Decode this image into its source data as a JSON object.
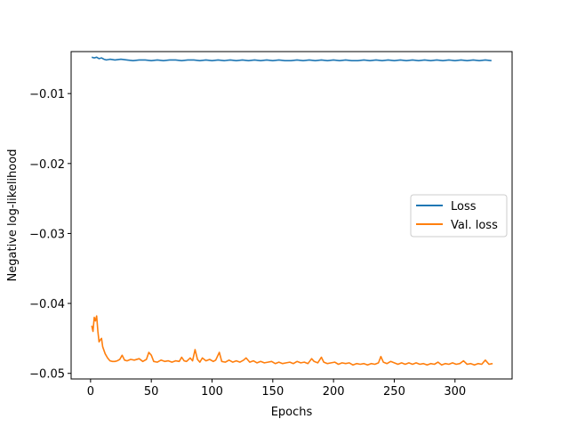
{
  "chart_data": {
    "type": "line",
    "title": "",
    "xlabel": "Epochs",
    "ylabel": "Negative log-likelihood",
    "xlim": [
      -16,
      347
    ],
    "ylim": [
      -0.0508,
      -0.004
    ],
    "xticks": [
      0,
      50,
      100,
      150,
      200,
      250,
      300
    ],
    "xtick_labels": [
      "0",
      "50",
      "100",
      "150",
      "200",
      "250",
      "300"
    ],
    "yticks": [
      -0.01,
      -0.02,
      -0.03,
      -0.04,
      -0.05
    ],
    "ytick_labels": [
      "−0.01",
      "−0.02",
      "−0.03",
      "−0.04",
      "−0.05"
    ],
    "grid": false,
    "legend": {
      "position": "center-right"
    },
    "series": [
      {
        "name": "Loss",
        "color": "#1f77b4",
        "points": [
          [
            1,
            -0.0048
          ],
          [
            3,
            -0.0049
          ],
          [
            5,
            -0.0048
          ],
          [
            7,
            -0.005
          ],
          [
            9,
            -0.0049
          ],
          [
            11,
            -0.0051
          ],
          [
            13,
            -0.0052
          ],
          [
            16,
            -0.0051
          ],
          [
            20,
            -0.0052
          ],
          [
            25,
            -0.0051
          ],
          [
            30,
            -0.0052
          ],
          [
            35,
            -0.0053
          ],
          [
            40,
            -0.0052
          ],
          [
            45,
            -0.0052
          ],
          [
            50,
            -0.0053
          ],
          [
            55,
            -0.0052
          ],
          [
            60,
            -0.0053
          ],
          [
            65,
            -0.0052
          ],
          [
            70,
            -0.0052
          ],
          [
            75,
            -0.0053
          ],
          [
            80,
            -0.0052
          ],
          [
            85,
            -0.0052
          ],
          [
            90,
            -0.0053
          ],
          [
            95,
            -0.0052
          ],
          [
            100,
            -0.0053
          ],
          [
            105,
            -0.0052
          ],
          [
            110,
            -0.0053
          ],
          [
            115,
            -0.0052
          ],
          [
            120,
            -0.0053
          ],
          [
            125,
            -0.0052
          ],
          [
            130,
            -0.0053
          ],
          [
            135,
            -0.0052
          ],
          [
            140,
            -0.0053
          ],
          [
            145,
            -0.0052
          ],
          [
            150,
            -0.0053
          ],
          [
            155,
            -0.0052
          ],
          [
            160,
            -0.0053
          ],
          [
            165,
            -0.0053
          ],
          [
            170,
            -0.0052
          ],
          [
            175,
            -0.0053
          ],
          [
            180,
            -0.0052
          ],
          [
            185,
            -0.0053
          ],
          [
            190,
            -0.0052
          ],
          [
            195,
            -0.0053
          ],
          [
            200,
            -0.0052
          ],
          [
            205,
            -0.0053
          ],
          [
            210,
            -0.0052
          ],
          [
            215,
            -0.0053
          ],
          [
            220,
            -0.0053
          ],
          [
            225,
            -0.0052
          ],
          [
            230,
            -0.0053
          ],
          [
            235,
            -0.0052
          ],
          [
            240,
            -0.0053
          ],
          [
            245,
            -0.0052
          ],
          [
            250,
            -0.0053
          ],
          [
            255,
            -0.0052
          ],
          [
            260,
            -0.0053
          ],
          [
            265,
            -0.0052
          ],
          [
            270,
            -0.0053
          ],
          [
            275,
            -0.0052
          ],
          [
            280,
            -0.0053
          ],
          [
            285,
            -0.0052
          ],
          [
            290,
            -0.0053
          ],
          [
            295,
            -0.0052
          ],
          [
            300,
            -0.0053
          ],
          [
            305,
            -0.0052
          ],
          [
            310,
            -0.0053
          ],
          [
            315,
            -0.0052
          ],
          [
            320,
            -0.0053
          ],
          [
            325,
            -0.0052
          ],
          [
            330,
            -0.0053
          ]
        ]
      },
      {
        "name": "Val. loss",
        "color": "#ff7f0e",
        "points": [
          [
            1,
            -0.0432
          ],
          [
            2,
            -0.044
          ],
          [
            3,
            -0.042
          ],
          [
            4,
            -0.0425
          ],
          [
            5,
            -0.0418
          ],
          [
            6,
            -0.044
          ],
          [
            7,
            -0.0455
          ],
          [
            8,
            -0.0452
          ],
          [
            9,
            -0.045
          ],
          [
            10,
            -0.0462
          ],
          [
            12,
            -0.0472
          ],
          [
            14,
            -0.0478
          ],
          [
            16,
            -0.0482
          ],
          [
            18,
            -0.0483
          ],
          [
            20,
            -0.0483
          ],
          [
            22,
            -0.0482
          ],
          [
            24,
            -0.048
          ],
          [
            26,
            -0.0474
          ],
          [
            28,
            -0.0481
          ],
          [
            30,
            -0.0482
          ],
          [
            33,
            -0.048
          ],
          [
            36,
            -0.0481
          ],
          [
            40,
            -0.0479
          ],
          [
            43,
            -0.0483
          ],
          [
            46,
            -0.048
          ],
          [
            48,
            -0.047
          ],
          [
            50,
            -0.0474
          ],
          [
            52,
            -0.0483
          ],
          [
            55,
            -0.0484
          ],
          [
            58,
            -0.0481
          ],
          [
            61,
            -0.0483
          ],
          [
            64,
            -0.0482
          ],
          [
            67,
            -0.0484
          ],
          [
            70,
            -0.0482
          ],
          [
            73,
            -0.0483
          ],
          [
            75,
            -0.0477
          ],
          [
            77,
            -0.0482
          ],
          [
            79,
            -0.0483
          ],
          [
            82,
            -0.0478
          ],
          [
            84,
            -0.0482
          ],
          [
            86,
            -0.0466
          ],
          [
            88,
            -0.048
          ],
          [
            90,
            -0.0484
          ],
          [
            92,
            -0.0478
          ],
          [
            95,
            -0.0482
          ],
          [
            98,
            -0.048
          ],
          [
            101,
            -0.0483
          ],
          [
            103,
            -0.0481
          ],
          [
            106,
            -0.047
          ],
          [
            108,
            -0.0483
          ],
          [
            111,
            -0.0484
          ],
          [
            114,
            -0.0481
          ],
          [
            117,
            -0.0484
          ],
          [
            120,
            -0.0482
          ],
          [
            123,
            -0.0484
          ],
          [
            126,
            -0.0481
          ],
          [
            128,
            -0.0478
          ],
          [
            131,
            -0.0484
          ],
          [
            134,
            -0.0482
          ],
          [
            137,
            -0.0485
          ],
          [
            140,
            -0.0483
          ],
          [
            143,
            -0.0485
          ],
          [
            146,
            -0.0484
          ],
          [
            149,
            -0.0483
          ],
          [
            152,
            -0.0486
          ],
          [
            155,
            -0.0484
          ],
          [
            158,
            -0.0486
          ],
          [
            161,
            -0.0485
          ],
          [
            164,
            -0.0484
          ],
          [
            167,
            -0.0486
          ],
          [
            170,
            -0.0483
          ],
          [
            173,
            -0.0485
          ],
          [
            176,
            -0.0484
          ],
          [
            179,
            -0.0486
          ],
          [
            182,
            -0.0479
          ],
          [
            184,
            -0.0483
          ],
          [
            187,
            -0.0485
          ],
          [
            190,
            -0.0477
          ],
          [
            192,
            -0.0484
          ],
          [
            195,
            -0.0486
          ],
          [
            198,
            -0.0485
          ],
          [
            201,
            -0.0484
          ],
          [
            204,
            -0.0487
          ],
          [
            207,
            -0.0485
          ],
          [
            210,
            -0.0486
          ],
          [
            213,
            -0.0485
          ],
          [
            216,
            -0.0488
          ],
          [
            219,
            -0.0486
          ],
          [
            222,
            -0.0487
          ],
          [
            225,
            -0.0486
          ],
          [
            228,
            -0.0488
          ],
          [
            231,
            -0.0486
          ],
          [
            234,
            -0.0487
          ],
          [
            237,
            -0.0485
          ],
          [
            239,
            -0.0476
          ],
          [
            241,
            -0.0484
          ],
          [
            244,
            -0.0486
          ],
          [
            247,
            -0.0483
          ],
          [
            250,
            -0.0485
          ],
          [
            253,
            -0.0487
          ],
          [
            256,
            -0.0485
          ],
          [
            259,
            -0.0487
          ],
          [
            262,
            -0.0485
          ],
          [
            265,
            -0.0487
          ],
          [
            268,
            -0.0485
          ],
          [
            271,
            -0.0487
          ],
          [
            274,
            -0.0486
          ],
          [
            277,
            -0.0488
          ],
          [
            280,
            -0.0486
          ],
          [
            283,
            -0.0487
          ],
          [
            286,
            -0.0484
          ],
          [
            289,
            -0.0488
          ],
          [
            292,
            -0.0486
          ],
          [
            295,
            -0.0487
          ],
          [
            298,
            -0.0485
          ],
          [
            301,
            -0.0487
          ],
          [
            304,
            -0.0486
          ],
          [
            307,
            -0.0482
          ],
          [
            310,
            -0.0487
          ],
          [
            313,
            -0.0486
          ],
          [
            316,
            -0.0488
          ],
          [
            319,
            -0.0486
          ],
          [
            322,
            -0.0487
          ],
          [
            325,
            -0.0481
          ],
          [
            328,
            -0.0487
          ],
          [
            331,
            -0.0486
          ]
        ]
      }
    ]
  }
}
